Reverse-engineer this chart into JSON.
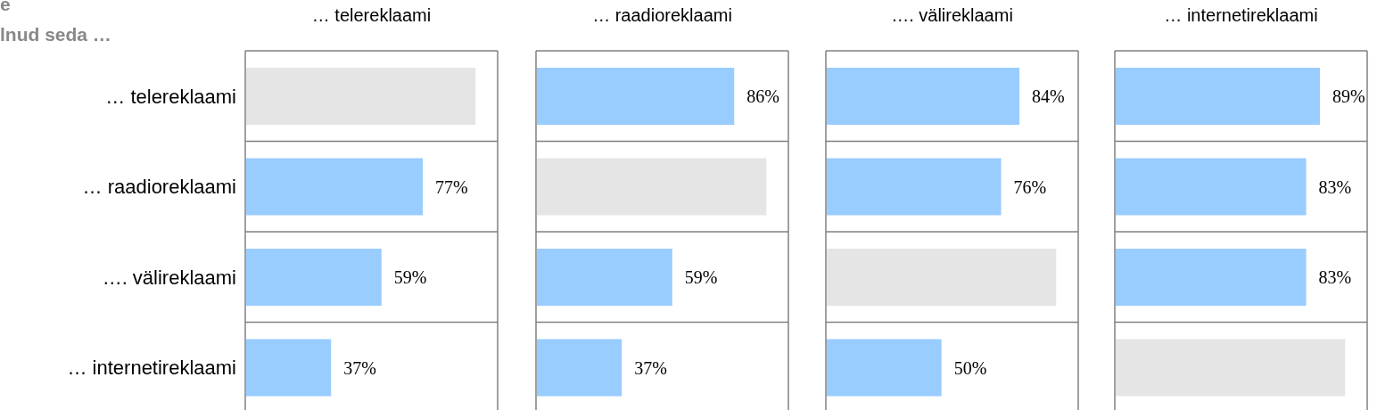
{
  "chart_data": [
    {
      "type": "bar",
      "orientation": "horizontal",
      "title": "… telereklaami",
      "annotations": [
        "e",
        "lnud seda …"
      ],
      "categories": [
        "… telereklaami",
        "… raadioreklaami",
        "…. välireklaami",
        "… internetireklaami"
      ],
      "values": [
        100,
        77,
        59,
        37
      ],
      "colors": [
        "#e5e5e5",
        "#99ccff",
        "#99ccff",
        "#99ccff"
      ],
      "value_labels": [
        null,
        "77%",
        "59%",
        "37%"
      ],
      "xlim": [
        0,
        110
      ],
      "tick_labels": "y"
    },
    {
      "type": "bar",
      "orientation": "horizontal",
      "title": "… raadioreklaami",
      "values": [
        86,
        100,
        59,
        37
      ],
      "colors": [
        "#99ccff",
        "#e5e5e5",
        "#99ccff",
        "#99ccff"
      ],
      "value_labels": [
        "86%",
        null,
        "59%",
        "37%"
      ],
      "xlim": [
        0,
        110
      ],
      "tick_labels": false
    },
    {
      "type": "bar",
      "orientation": "horizontal",
      "title": "…. välireklaami",
      "values": [
        84,
        76,
        100,
        50
      ],
      "colors": [
        "#99ccff",
        "#99ccff",
        "#e5e5e5",
        "#99ccff"
      ],
      "value_labels": [
        "84%",
        "76%",
        null,
        "50%"
      ],
      "xlim": [
        0,
        110
      ],
      "tick_labels": false
    },
    {
      "type": "bar",
      "orientation": "horizontal",
      "title": "… internetireklaami",
      "values": [
        89,
        83,
        83,
        100
      ],
      "colors": [
        "#99ccff",
        "#99ccff",
        "#99ccff",
        "#e5e5e5"
      ],
      "value_labels": [
        "89%",
        "83%",
        "83%",
        null
      ],
      "xlim": [
        0,
        110
      ],
      "tick_labels": false
    }
  ]
}
